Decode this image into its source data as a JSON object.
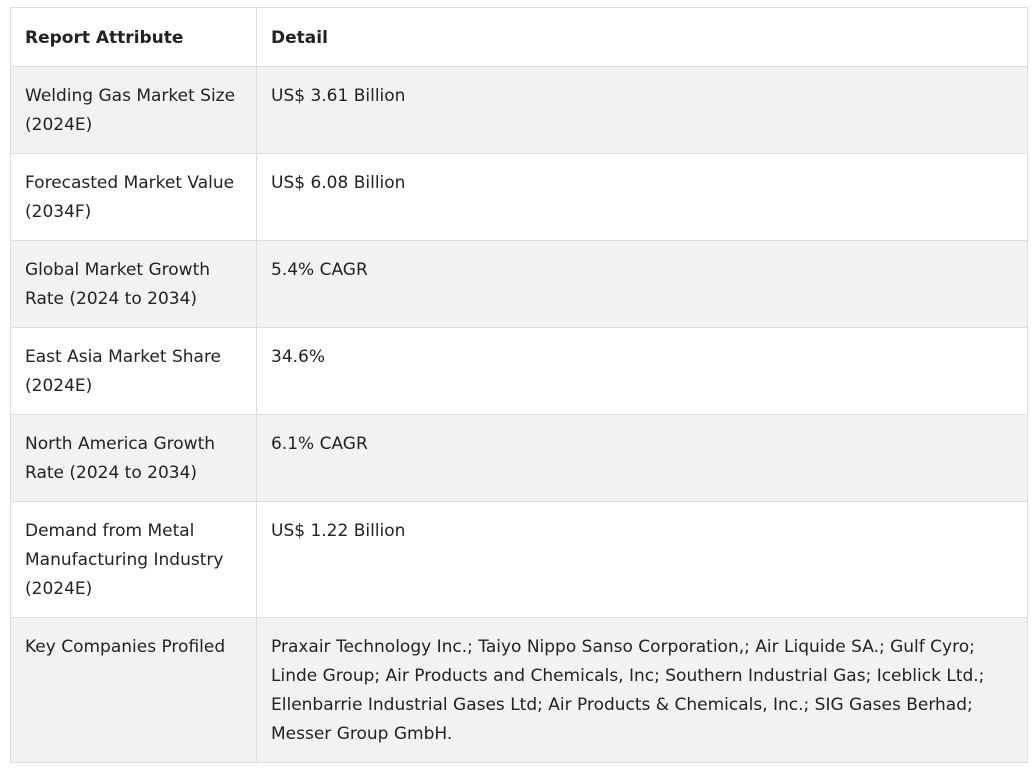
{
  "table": {
    "headers": {
      "attribute": "Report Attribute",
      "detail": "Detail"
    },
    "rows": [
      {
        "attribute": "Welding Gas Market Size (2024E)",
        "detail": "US$ 3.61 Billion"
      },
      {
        "attribute": "Forecasted Market Value (2034F)",
        "detail": "US$ 6.08 Billion"
      },
      {
        "attribute": "Global Market Growth Rate (2024 to 2034)",
        "detail": "5.4% CAGR"
      },
      {
        "attribute": "East Asia Market Share (2024E)",
        "detail": "34.6%"
      },
      {
        "attribute": "North America Growth Rate (2024 to 2034)",
        "detail": "6.1% CAGR"
      },
      {
        "attribute": "Demand from Metal Manufacturing Industry (2024E)",
        "detail": "US$ 1.22 Billion"
      },
      {
        "attribute": "Key Companies Profiled",
        "detail": "Praxair Technology Inc.; Taiyo Nippo Sanso Corporation,; Air Liquide SA.; Gulf Cyro; Linde Group; Air Products and Chemicals, Inc; Southern Industrial Gas; Iceblick Ltd.; Ellenbarrie Industrial Gases Ltd; Air Products & Chemicals, Inc.; SIG Gases Berhad; Messer Group GmbH."
      }
    ]
  }
}
